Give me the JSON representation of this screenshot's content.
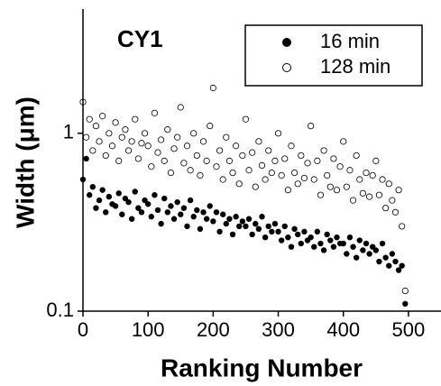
{
  "chart_data": {
    "type": "scatter",
    "title": "CY1",
    "x_label": "Ranking Number",
    "y_label": "Width (μm)",
    "log_y": true,
    "legend": "top-right",
    "xlim": [
      0,
      550
    ],
    "ylim": [
      0.1,
      5
    ],
    "xticks": [
      0,
      100,
      200,
      300,
      400,
      500
    ],
    "yticks": [
      0.1,
      1
    ],
    "x": [
      0,
      5,
      10,
      15,
      20,
      25,
      30,
      35,
      40,
      45,
      50,
      55,
      60,
      65,
      70,
      75,
      80,
      85,
      90,
      95,
      100,
      105,
      110,
      115,
      120,
      125,
      130,
      135,
      140,
      145,
      150,
      155,
      160,
      165,
      170,
      175,
      180,
      185,
      190,
      195,
      200,
      205,
      210,
      215,
      220,
      225,
      230,
      235,
      240,
      245,
      250,
      255,
      260,
      265,
      270,
      275,
      280,
      285,
      290,
      295,
      300,
      305,
      310,
      315,
      320,
      325,
      330,
      335,
      340,
      345,
      350,
      355,
      360,
      365,
      370,
      375,
      380,
      385,
      390,
      395,
      400,
      405,
      410,
      415,
      420,
      425,
      430,
      435,
      440,
      445,
      450,
      455,
      460,
      465,
      470,
      475,
      480,
      485,
      490,
      495
    ],
    "series": [
      {
        "name": "16 min",
        "color": "#000000",
        "filled": true,
        "values": [
          0.55,
          0.72,
          0.45,
          0.5,
          0.38,
          0.42,
          0.48,
          0.36,
          0.44,
          0.4,
          0.39,
          0.46,
          0.35,
          0.43,
          0.41,
          0.33,
          0.47,
          0.38,
          0.36,
          0.42,
          0.4,
          0.34,
          0.45,
          0.37,
          0.31,
          0.43,
          0.36,
          0.39,
          0.33,
          0.41,
          0.35,
          0.38,
          0.3,
          0.42,
          0.34,
          0.37,
          0.29,
          0.36,
          0.33,
          0.39,
          0.32,
          0.36,
          0.28,
          0.35,
          0.31,
          0.33,
          0.27,
          0.34,
          0.3,
          0.32,
          0.3,
          0.33,
          0.27,
          0.31,
          0.29,
          0.34,
          0.26,
          0.3,
          0.28,
          0.31,
          0.28,
          0.25,
          0.3,
          0.26,
          0.23,
          0.29,
          0.27,
          0.24,
          0.28,
          0.25,
          0.26,
          0.23,
          0.28,
          0.24,
          0.22,
          0.27,
          0.25,
          0.23,
          0.26,
          0.24,
          0.24,
          0.21,
          0.26,
          0.23,
          0.2,
          0.25,
          0.22,
          0.24,
          0.21,
          0.23,
          0.22,
          0.19,
          0.24,
          0.2,
          0.18,
          0.21,
          0.19,
          0.17,
          0.18,
          0.11
        ]
      },
      {
        "name": "128 min",
        "color": "#000000",
        "filled": false,
        "values": [
          1.5,
          0.95,
          1.2,
          0.8,
          1.1,
          0.9,
          1.25,
          0.75,
          1.0,
          0.85,
          1.15,
          0.7,
          0.95,
          1.05,
          0.8,
          0.9,
          1.2,
          0.72,
          0.88,
          1.0,
          0.85,
          0.65,
          1.3,
          0.78,
          0.92,
          0.7,
          1.05,
          0.6,
          0.82,
          0.95,
          1.4,
          0.68,
          0.85,
          0.62,
          1.0,
          0.75,
          0.58,
          0.9,
          0.7,
          1.1,
          1.8,
          0.65,
          0.8,
          0.55,
          0.95,
          0.7,
          0.6,
          0.85,
          0.52,
          0.75,
          1.2,
          0.62,
          0.78,
          0.5,
          0.9,
          0.66,
          0.55,
          0.8,
          0.6,
          0.7,
          1.0,
          0.58,
          0.72,
          0.48,
          0.85,
          0.6,
          0.52,
          0.75,
          0.56,
          0.68,
          1.1,
          0.55,
          0.7,
          0.45,
          0.8,
          0.58,
          0.5,
          0.72,
          0.48,
          0.65,
          0.9,
          0.5,
          0.62,
          0.42,
          0.75,
          0.55,
          0.46,
          0.6,
          0.44,
          0.58,
          0.7,
          0.45,
          0.55,
          0.38,
          0.52,
          0.42,
          0.36,
          0.48,
          0.3,
          0.13
        ]
      }
    ]
  }
}
